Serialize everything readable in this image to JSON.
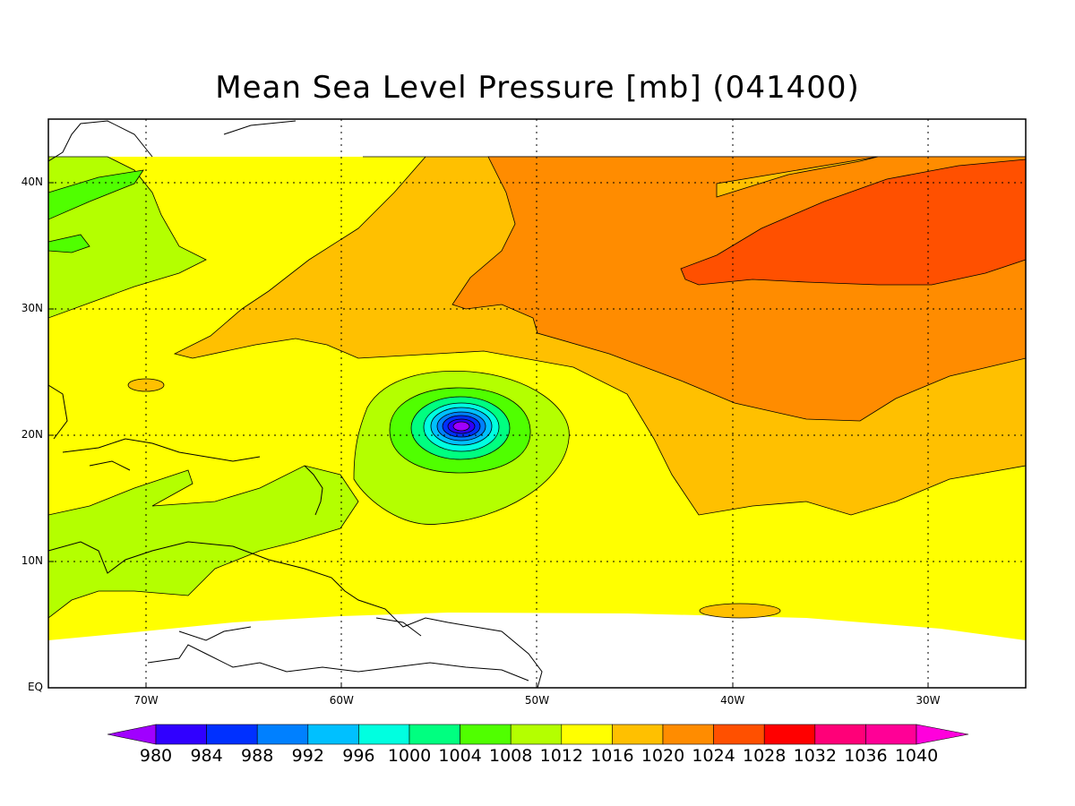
{
  "title": "Mean Sea Level Pressure [mb] (041400)",
  "map": {
    "lon_range": [
      -75,
      -25
    ],
    "lat_range": [
      0,
      45
    ],
    "grid": true,
    "x_ticks": [
      {
        "lon": -70,
        "label": "70W"
      },
      {
        "lon": -60,
        "label": "60W"
      },
      {
        "lon": -50,
        "label": "50W"
      },
      {
        "lon": -40,
        "label": "40W"
      },
      {
        "lon": -30,
        "label": "30W"
      }
    ],
    "y_ticks": [
      {
        "lat": 0,
        "label": "EQ"
      },
      {
        "lat": 10,
        "label": "10N"
      },
      {
        "lat": 20,
        "label": "20N"
      },
      {
        "lat": 30,
        "label": "30N"
      },
      {
        "lat": 40,
        "label": "40N"
      }
    ],
    "cyclone_center": {
      "lon": -53.5,
      "lat": 20.5
    }
  },
  "colorbar": {
    "labels": [
      "980",
      "984",
      "988",
      "992",
      "996",
      "1000",
      "1004",
      "1008",
      "1012",
      "1016",
      "1020",
      "1024",
      "1028",
      "1032",
      "1036",
      "1040"
    ],
    "colors": [
      "#a000ff",
      "#3000ff",
      "#0030ff",
      "#0080ff",
      "#00c0ff",
      "#00ffe0",
      "#00ff80",
      "#50ff00",
      "#b4ff00",
      "#ffff00",
      "#ffc000",
      "#ff8c00",
      "#ff5000",
      "#ff0000",
      "#ff0078",
      "#ff0096",
      "#ff00dc"
    ]
  }
}
